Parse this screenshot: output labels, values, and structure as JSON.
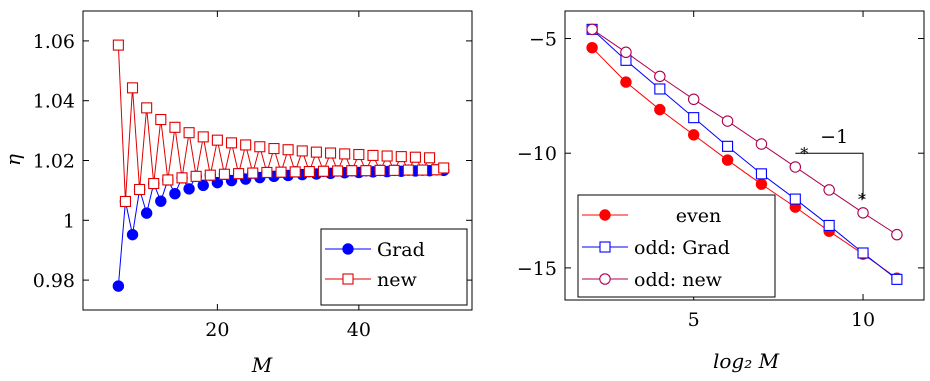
{
  "chart_data": [
    {
      "type": "line",
      "xlabel": "M",
      "ylabel": "η",
      "xlim": [
        1,
        56
      ],
      "ylim": [
        0.97,
        1.07
      ],
      "xticks": [
        {
          "value": 20,
          "label": "20"
        },
        {
          "value": 40,
          "label": "40"
        }
      ],
      "yticks": [
        {
          "value": 0.98,
          "label": "0.98"
        },
        {
          "value": 1.0,
          "label": "1"
        },
        {
          "value": 1.02,
          "label": "1.02"
        },
        {
          "value": 1.04,
          "label": "1.04"
        },
        {
          "value": 1.06,
          "label": "1.06"
        }
      ],
      "legend_position": "bottom-right",
      "series": [
        {
          "name": "Grad",
          "color": "#0000ff",
          "marker": "filled-circle",
          "x": [
            6,
            7,
            8,
            9,
            10,
            11,
            12,
            13,
            14,
            15,
            16,
            17,
            18,
            19,
            20,
            21,
            22,
            23,
            24,
            25,
            26,
            27,
            28,
            29,
            30,
            31,
            32,
            33,
            34,
            35,
            36,
            37,
            38,
            39,
            40,
            41,
            42,
            43,
            44,
            45,
            46,
            47,
            48,
            49,
            50,
            51,
            52
          ],
          "y": [
            0.978,
            1.0063,
            0.9952,
            1.0103,
            1.0024,
            1.0123,
            1.0064,
            1.0135,
            1.0089,
            1.0142,
            1.0105,
            1.0147,
            1.0117,
            1.0151,
            1.0126,
            1.0154,
            1.0133,
            1.0156,
            1.0138,
            1.0158,
            1.0143,
            1.016,
            1.0147,
            1.0161,
            1.015,
            1.0162,
            1.0153,
            1.0163,
            1.0155,
            1.0164,
            1.0157,
            1.0165,
            1.0159,
            1.0166,
            1.016,
            1.0166,
            1.0162,
            1.0167,
            1.0163,
            1.0167,
            1.0164,
            1.0168,
            1.0165,
            1.0168,
            1.0166,
            1.0169,
            1.0167
          ]
        },
        {
          "name": "new",
          "color": "#e00000",
          "marker": "open-square",
          "x": [
            6,
            7,
            8,
            9,
            10,
            11,
            12,
            13,
            14,
            15,
            16,
            17,
            18,
            19,
            20,
            21,
            22,
            23,
            24,
            25,
            26,
            27,
            28,
            29,
            30,
            31,
            32,
            33,
            34,
            35,
            36,
            37,
            38,
            39,
            40,
            41,
            42,
            43,
            44,
            45,
            46,
            47,
            48,
            49,
            50,
            51,
            52
          ],
          "y": [
            1.0586,
            1.0063,
            1.0443,
            1.0103,
            1.0376,
            1.0123,
            1.0337,
            1.0135,
            1.0311,
            1.0142,
            1.0293,
            1.0147,
            1.0279,
            1.0151,
            1.0268,
            1.0154,
            1.0259,
            1.0156,
            1.0252,
            1.0158,
            1.0246,
            1.016,
            1.024,
            1.0161,
            1.0236,
            1.0162,
            1.0232,
            1.0163,
            1.0228,
            1.0164,
            1.0225,
            1.0165,
            1.0222,
            1.0166,
            1.022,
            1.0166,
            1.0217,
            1.0167,
            1.0215,
            1.0167,
            1.0213,
            1.0168,
            1.0211,
            1.0168,
            1.0209,
            1.0169,
            1.0175
          ]
        }
      ]
    },
    {
      "type": "line",
      "xlabel": "log₂ M",
      "ylabel": "",
      "xlim": [
        1.2,
        11.8
      ],
      "ylim": [
        -16.4,
        -3.8
      ],
      "xticks": [
        {
          "value": 5,
          "label": "5"
        },
        {
          "value": 10,
          "label": "10"
        }
      ],
      "yticks": [
        {
          "value": -15,
          "label": "−15"
        },
        {
          "value": -10,
          "label": "−10"
        },
        {
          "value": -5,
          "label": "−5"
        }
      ],
      "legend_position": "bottom-left",
      "series": [
        {
          "name": "even",
          "color": "#ff0000",
          "marker": "filled-circle",
          "x": [
            2,
            3,
            4,
            5,
            6,
            7,
            8,
            9,
            10,
            11
          ],
          "y": [
            -5.4,
            -6.9,
            -8.1,
            -9.2,
            -10.3,
            -11.35,
            -12.35,
            -13.4,
            -14.4,
            -15.45
          ]
        },
        {
          "name": "odd: Grad",
          "color": "#0000ff",
          "marker": "open-square",
          "x": [
            2,
            3,
            4,
            5,
            6,
            7,
            8,
            9,
            10,
            11
          ],
          "y": [
            -4.6,
            -5.95,
            -7.2,
            -8.45,
            -9.7,
            -10.9,
            -12.0,
            -13.15,
            -14.35,
            -15.5
          ]
        },
        {
          "name": "odd: new",
          "color": "#b00050",
          "marker": "open-circle",
          "x": [
            2,
            3,
            4,
            5,
            6,
            7,
            8,
            9,
            10,
            11
          ],
          "y": [
            -4.6,
            -5.6,
            -6.65,
            -7.65,
            -8.6,
            -9.6,
            -10.6,
            -11.6,
            -12.6,
            -13.55
          ]
        }
      ],
      "slope_triangle": {
        "label": "−1",
        "vertices": [
          [
            8,
            -10
          ],
          [
            10,
            -10
          ],
          [
            10,
            -12
          ]
        ]
      }
    }
  ]
}
